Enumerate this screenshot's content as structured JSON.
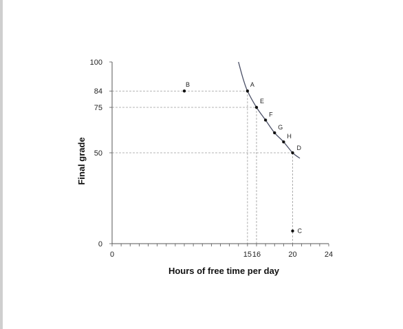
{
  "chart_data": {
    "type": "scatter",
    "xlabel": "Hours of free time per day",
    "ylabel": "Final grade",
    "xlim": [
      0,
      24
    ],
    "ylim": [
      0,
      100
    ],
    "x_ticks": [
      0,
      15,
      16,
      20,
      24
    ],
    "y_ticks": [
      0,
      50,
      75,
      84,
      100
    ],
    "grid": false,
    "points": [
      {
        "label": "A",
        "x": 15,
        "y": 84
      },
      {
        "label": "B",
        "x": 8,
        "y": 84
      },
      {
        "label": "C",
        "x": 20,
        "y": 7
      },
      {
        "label": "D",
        "x": 20,
        "y": 50
      },
      {
        "label": "E",
        "x": 16,
        "y": 75
      },
      {
        "label": "F",
        "x": 17,
        "y": 68
      },
      {
        "label": "G",
        "x": 18,
        "y": 61
      },
      {
        "label": "H",
        "x": 19,
        "y": 56
      }
    ],
    "curve": [
      {
        "x": 14.0,
        "y": 100
      },
      {
        "x": 14.5,
        "y": 91
      },
      {
        "x": 15,
        "y": 84
      },
      {
        "x": 16,
        "y": 75
      },
      {
        "x": 17,
        "y": 68
      },
      {
        "x": 18,
        "y": 61
      },
      {
        "x": 19,
        "y": 56
      },
      {
        "x": 20,
        "y": 50
      },
      {
        "x": 20.8,
        "y": 47
      }
    ],
    "reference_lines": [
      {
        "x": 15,
        "y": 84
      },
      {
        "x": 16,
        "y": 75
      },
      {
        "x": 20,
        "y": 50
      }
    ]
  }
}
